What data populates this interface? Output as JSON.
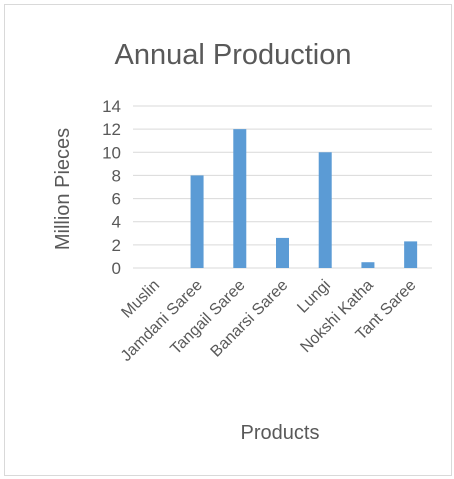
{
  "chart_data": {
    "type": "bar",
    "title": "Annual Production",
    "xlabel": "Products",
    "ylabel": "Million Pieces",
    "categories": [
      "Muslin",
      "Jamdani Saree",
      "Tangail Saree",
      "Banarsi Saree",
      "Lungi",
      "Nokshi Katha",
      "Tant Saree"
    ],
    "values": [
      0,
      8,
      12,
      2.6,
      10,
      0.5,
      2.3
    ],
    "ylim": [
      0,
      14
    ],
    "yticks": [
      0,
      2,
      4,
      6,
      8,
      10,
      12,
      14
    ],
    "grid": true,
    "legend": "none",
    "colors": {
      "bar": "#5b9bd5",
      "grid": "#d9d9d9",
      "text": "#595959"
    }
  }
}
